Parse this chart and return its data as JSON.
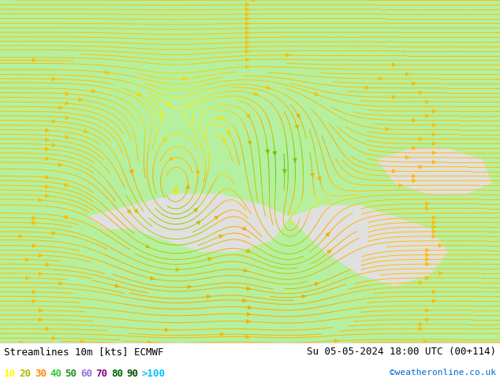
{
  "title_left": "Streamlines 10m [kts] ECMWF",
  "title_right": "Su 05-05-2024 18:00 UTC (00+114)",
  "watermark": "©weatheronline.co.uk",
  "legend_labels": [
    "10",
    "20",
    "30",
    "40",
    "50",
    "60",
    "70",
    "80",
    "90",
    ">100"
  ],
  "legend_colors": [
    "#ffff00",
    "#c8c800",
    "#ffa500",
    "#c8a000",
    "#a0a000",
    "#78c878",
    "#00aa00",
    "#006400",
    "#006400",
    "#00c8ff"
  ],
  "bg_color": "#b4f0a0",
  "sea_color": "#e0e0e0",
  "border_color": "#969696",
  "fig_width": 6.34,
  "fig_height": 4.9,
  "bottom_bar_color": "#ffffff",
  "text_color": "#000000",
  "font_size_title": 9,
  "font_size_legend": 9,
  "font_size_watermark": 8,
  "map_extent": [
    -15,
    42,
    27,
    57
  ],
  "dpi": 100
}
